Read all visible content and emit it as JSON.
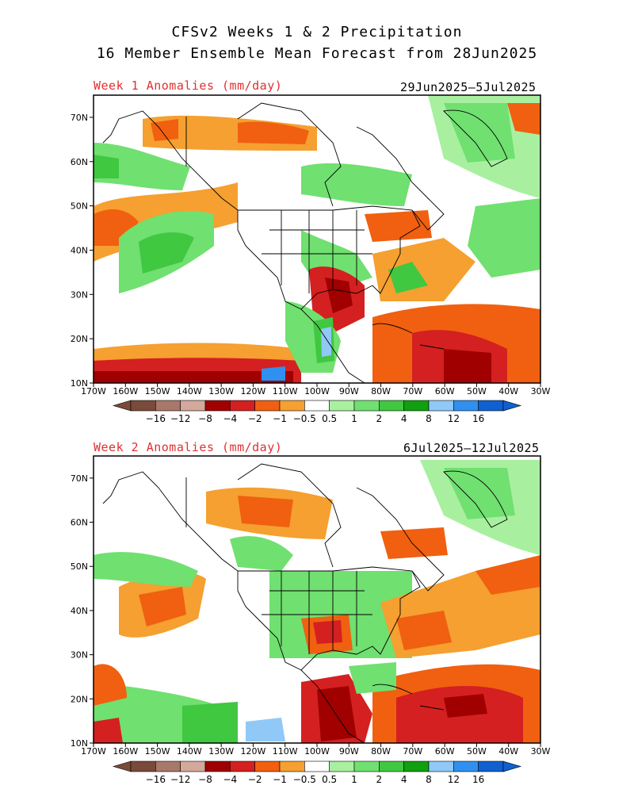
{
  "header": {
    "title_line1": "CFSv2 Weeks 1 & 2 Precipitation",
    "title_line2": "16 Member Ensemble Mean Forecast from 28Jun2025"
  },
  "panels": [
    {
      "label": "Week 1 Anomalies (mm/day)",
      "period": "29Jun2025—5Jul2025"
    },
    {
      "label": "Week 2 Anomalies (mm/day)",
      "period": "6Jul2025—12Jul2025"
    }
  ],
  "axes": {
    "lat_labels": [
      "70N",
      "60N",
      "50N",
      "40N",
      "30N",
      "20N",
      "10N"
    ],
    "lon_labels": [
      "170W",
      "160W",
      "150W",
      "140W",
      "130W",
      "120W",
      "110W",
      "100W",
      "90W",
      "80W",
      "70W",
      "60W",
      "50W",
      "40W",
      "30W"
    ]
  },
  "colorbar": {
    "labels": [
      "−16",
      "−12",
      "−8",
      "−4",
      "−2",
      "−1",
      "−0.5",
      "0.5",
      "1",
      "2",
      "4",
      "8",
      "12",
      "16"
    ],
    "colors": [
      "#7a4a3a",
      "#a8786a",
      "#d4a89a",
      "#a00000",
      "#d42020",
      "#f06010",
      "#f5a030",
      "#ffffff",
      "#a8f0a0",
      "#70e070",
      "#40c840",
      "#10a010",
      "#90c8f8",
      "#3090f0",
      "#1060d0"
    ]
  }
}
